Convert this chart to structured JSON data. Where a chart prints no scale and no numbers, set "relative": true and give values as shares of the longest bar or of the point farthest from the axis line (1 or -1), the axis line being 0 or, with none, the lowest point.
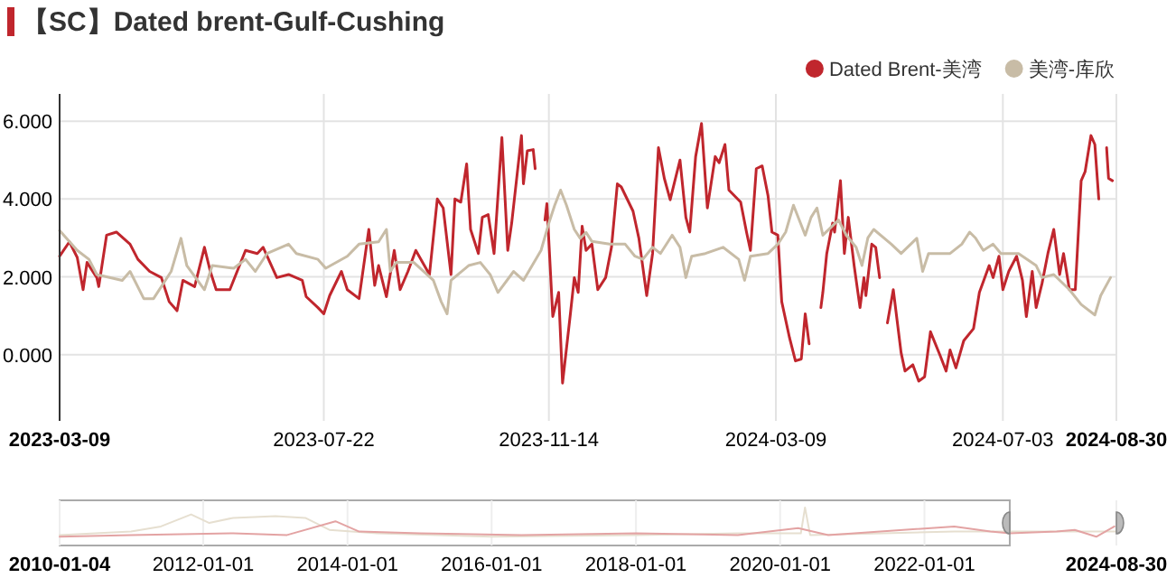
{
  "chart_data": [
    {
      "type": "line",
      "title": "【SC】Dated brent-Gulf-Cushing",
      "xlim": [
        "2023-03-09",
        "2024-08-30"
      ],
      "xticks": [
        "2023-03-09",
        "2023-07-22",
        "2023-11-14",
        "2024-03-09",
        "2024-07-03",
        "2024-08-30"
      ],
      "ylim": [
        -1.7,
        6.7
      ],
      "yticks": [
        {
          "value": 0,
          "label": "0.000"
        },
        {
          "value": 2,
          "label": "2.000"
        },
        {
          "value": 4,
          "label": "4.000"
        },
        {
          "value": 6,
          "label": "6.000"
        }
      ],
      "grid": true,
      "legend": "top right",
      "marker": "none",
      "line_style": "solid",
      "series": [
        {
          "name": "Dated Brent-美湾",
          "color": "#c0262d",
          "x": [
            "2023-03-09",
            "2023-03-14",
            "2023-03-18",
            "2023-03-21",
            "2023-03-23",
            "2023-03-28",
            "2023-03-29",
            "2023-04-02",
            "2023-04-07",
            "2023-04-14",
            "2023-04-18",
            "2023-04-24",
            "2023-04-30",
            "2023-05-04",
            "2023-05-08",
            "2023-05-11",
            "2023-05-17",
            "2023-05-22",
            "2023-05-25",
            "2023-05-28",
            "2023-06-04",
            "2023-06-12",
            "2023-06-18",
            "2023-06-21",
            "2023-06-28",
            "2023-07-04",
            "2023-07-11",
            "2023-07-13",
            "2023-07-19",
            "2023-07-22",
            "2023-07-25",
            "2023-07-31",
            "2023-08-03",
            "2023-08-09",
            "2023-08-14",
            "2023-08-17",
            "2023-08-19",
            "2023-08-23",
            "2023-08-27",
            "2023-08-30",
            "2023-09-03",
            "2023-09-07",
            "2023-09-14",
            "2023-09-18",
            "2023-09-21",
            "2023-09-25",
            "2023-09-27",
            "2023-09-30",
            "2023-10-03",
            "2023-10-05",
            "2023-10-09",
            "2023-10-11",
            "2023-10-14",
            "2023-10-17",
            "2023-10-21",
            "2023-10-24",
            "2023-10-26",
            "2023-10-31",
            "2023-11-01",
            "2023-11-03",
            "2023-11-06",
            "2023-11-07",
            "2023-11-09",
            "2023-11-12",
            "2023-11-13",
            "2023-11-16",
            "2023-11-19",
            "2023-11-21",
            "2023-11-25",
            "2023-11-27",
            "2023-11-29",
            "2023-12-01",
            "2023-12-03",
            "2023-12-06",
            "2023-12-09",
            "2023-12-13",
            "2023-12-16",
            "2023-12-19",
            "2023-12-21",
            "2023-12-27",
            "2023-12-30",
            "2024-01-03",
            "2024-01-06",
            "2024-01-09",
            "2024-01-12",
            "2024-01-15",
            "2024-01-20",
            "2024-01-23",
            "2024-01-25",
            "2024-01-28",
            "2024-01-31",
            "2024-02-03",
            "2024-02-07",
            "2024-02-09",
            "2024-02-12",
            "2024-02-14",
            "2024-02-20",
            "2024-02-23",
            "2024-02-25",
            "2024-02-28",
            "2024-03-02",
            "2024-03-05",
            "2024-03-07",
            "2024-03-10",
            "2024-03-12",
            "2024-03-16",
            "2024-03-19",
            "2024-03-22",
            "2024-03-24",
            "2024-03-26",
            "2024-03-30",
            "2024-04-01",
            "2024-04-02",
            "2024-04-04",
            "2024-04-07",
            "2024-04-08",
            "2024-04-11",
            "2024-04-13",
            "2024-04-15",
            "2024-04-18",
            "2024-04-21",
            "2024-04-23",
            "2024-04-24",
            "2024-04-27",
            "2024-04-29",
            "2024-05-01",
            "2024-05-03",
            "2024-05-05",
            "2024-05-08",
            "2024-05-12",
            "2024-05-14",
            "2024-05-18",
            "2024-05-21",
            "2024-05-24",
            "2024-05-27",
            "2024-06-01",
            "2024-06-04",
            "2024-06-06",
            "2024-06-09",
            "2024-06-13",
            "2024-06-18",
            "2024-06-21",
            "2024-06-26",
            "2024-06-28",
            "2024-07-01",
            "2024-07-03",
            "2024-07-06",
            "2024-07-10",
            "2024-07-13",
            "2024-07-15",
            "2024-07-18",
            "2024-07-20",
            "2024-07-23",
            "2024-07-26",
            "2024-07-29",
            "2024-08-01",
            "2024-08-03",
            "2024-08-06",
            "2024-08-09",
            "2024-08-12",
            "2024-08-14",
            "2024-08-17",
            "2024-08-19",
            "2024-08-21",
            "2024-08-23",
            "2024-08-25",
            "2024-08-26",
            "2024-08-28"
          ],
          "values": [
            2.53,
            2.9,
            2.5,
            1.67,
            2.37,
            1.98,
            1.75,
            3.07,
            3.15,
            2.84,
            2.45,
            2.14,
            1.98,
            1.36,
            1.13,
            1.91,
            1.75,
            2.76,
            2.14,
            1.67,
            1.67,
            2.68,
            2.6,
            2.76,
            1.98,
            2.06,
            1.91,
            1.49,
            1.21,
            1.05,
            1.52,
            2.14,
            1.67,
            1.44,
            3.22,
            1.78,
            2.29,
            1.49,
            2.68,
            1.67,
            2.14,
            2.68,
            2.06,
            4.0,
            3.77,
            2.06,
            4.0,
            3.92,
            4.9,
            3.22,
            2.6,
            3.53,
            3.6,
            2.6,
            5.58,
            2.68,
            3.38,
            5.63,
            4.39,
            5.24,
            5.27,
            4.78,
            null,
            3.46,
            3.88,
            0.98,
            1.6,
            -0.73,
            1.05,
            1.98,
            1.6,
            3.3,
            2.68,
            2.84,
            1.67,
            1.98,
            2.76,
            4.39,
            4.31,
            3.69,
            2.99,
            1.52,
            2.6,
            5.32,
            4.53,
            3.98,
            5.0,
            3.53,
            3.15,
            5.09,
            5.94,
            3.77,
            5.09,
            4.93,
            5.4,
            4.23,
            3.92,
            3.15,
            2.68,
            4.78,
            4.85,
            4.08,
            3.15,
            3.07,
            1.36,
            0.43,
            -0.16,
            -0.11,
            1.05,
            0.28,
            null,
            1.21,
            1.6,
            2.6,
            3.38,
            3.15,
            4.47,
            2.6,
            3.53,
            2.29,
            1.21,
            1.98,
            1.52,
            2.84,
            2.76,
            1.98,
            null,
            0.82,
            1.67,
            0.05,
            -0.42,
            -0.26,
            -0.68,
            -0.57,
            0.59,
            -0.03,
            -0.42,
            0.12,
            -0.34,
            0.36,
            0.67,
            1.6,
            2.29,
            1.98,
            2.53,
            1.67,
            2.14,
            2.53,
            1.91,
            0.98,
            2.14,
            1.21,
            1.83,
            2.6,
            3.22,
            2.06,
            2.6,
            1.67,
            1.67,
            4.47,
            4.7,
            5.63,
            5.4,
            4.0,
            null,
            5.32,
            4.53,
            4.47
          ]
        },
        {
          "name": "美湾-库欣",
          "color": "#c8bca6",
          "x": [
            "2023-03-09",
            "2023-03-18",
            "2023-03-24",
            "2023-03-28",
            "2023-04-10",
            "2023-04-14",
            "2023-04-21",
            "2023-04-26",
            "2023-05-05",
            "2023-05-10",
            "2023-05-13",
            "2023-05-22",
            "2023-05-26",
            "2023-06-06",
            "2023-06-12",
            "2023-06-17",
            "2023-06-23",
            "2023-07-04",
            "2023-07-08",
            "2023-07-19",
            "2023-07-23",
            "2023-08-03",
            "2023-08-09",
            "2023-08-19",
            "2023-08-23",
            "2023-08-25",
            "2023-08-28",
            "2023-09-06",
            "2023-09-16",
            "2023-09-20",
            "2023-09-23",
            "2023-09-25",
            "2023-10-04",
            "2023-10-10",
            "2023-10-15",
            "2023-10-19",
            "2023-10-27",
            "2023-11-01",
            "2023-11-10",
            "2023-11-14",
            "2023-11-17",
            "2023-11-20",
            "2023-11-23",
            "2023-11-27",
            "2023-11-30",
            "2023-12-03",
            "2023-12-06",
            "2023-12-15",
            "2023-12-23",
            "2023-12-28",
            "2024-01-01",
            "2024-01-06",
            "2024-01-10",
            "2024-01-16",
            "2024-01-20",
            "2024-01-23",
            "2024-01-26",
            "2024-02-02",
            "2024-02-11",
            "2024-02-19",
            "2024-02-22",
            "2024-02-25",
            "2024-03-05",
            "2024-03-10",
            "2024-03-14",
            "2024-03-18",
            "2024-03-24",
            "2024-03-27",
            "2024-03-30",
            "2024-04-02",
            "2024-04-10",
            "2024-04-14",
            "2024-04-19",
            "2024-04-22",
            "2024-04-25",
            "2024-04-28",
            "2024-05-07",
            "2024-05-12",
            "2024-05-20",
            "2024-05-23",
            "2024-05-26",
            "2024-06-06",
            "2024-06-12",
            "2024-06-16",
            "2024-06-19",
            "2024-06-23",
            "2024-06-28",
            "2024-07-02",
            "2024-07-11",
            "2024-07-20",
            "2024-07-23",
            "2024-07-29",
            "2024-08-06",
            "2024-08-12",
            "2024-08-19",
            "2024-08-22",
            "2024-08-27"
          ],
          "values": [
            3.19,
            2.68,
            2.45,
            2.06,
            1.91,
            2.14,
            1.44,
            1.44,
            2.14,
            2.99,
            2.29,
            1.67,
            2.29,
            2.22,
            2.45,
            2.14,
            2.6,
            2.84,
            2.6,
            2.45,
            2.22,
            2.53,
            2.84,
            2.9,
            3.22,
            2.14,
            2.37,
            2.37,
            1.91,
            1.36,
            1.05,
            1.91,
            2.29,
            2.37,
            2.06,
            1.6,
            2.14,
            1.91,
            2.68,
            3.38,
            3.84,
            4.23,
            3.84,
            3.22,
            2.99,
            3.14,
            2.91,
            2.84,
            2.84,
            2.53,
            2.45,
            2.76,
            2.6,
            3.07,
            2.76,
            1.98,
            2.53,
            2.6,
            2.76,
            2.45,
            1.91,
            2.53,
            2.6,
            2.84,
            3.15,
            3.84,
            3.07,
            3.53,
            3.77,
            3.07,
            3.46,
            3.07,
            2.76,
            2.29,
            3.0,
            3.22,
            2.84,
            2.6,
            2.99,
            2.14,
            2.6,
            2.6,
            2.84,
            3.15,
            3.0,
            2.68,
            2.84,
            2.6,
            2.6,
            2.29,
            1.98,
            2.06,
            1.67,
            1.29,
            1.02,
            1.52,
            1.98
          ]
        }
      ]
    },
    {
      "type": "line",
      "relative": true,
      "xlim": [
        "2010-01-04",
        "2024-08-30"
      ],
      "xticks": [
        "2010-01-04",
        "2012-01-01",
        "2014-01-01",
        "2016-01-01",
        "2018-01-01",
        "2020-01-01",
        "2022-01-01",
        "2024-08-30"
      ],
      "grid": "x",
      "line_style": "solid",
      "series": [
        {
          "color": "#e6dfd0",
          "x": [
            "2010-01-04",
            "2011-01-01",
            "2011-06-01",
            "2011-11-01",
            "2012-02-01",
            "2012-06-01",
            "2013-01-01",
            "2013-06-01",
            "2013-10-01",
            "2014-06-01",
            "2016-01-01",
            "2018-01-01",
            "2019-06-01",
            "2020-04-15",
            "2020-05-06",
            "2020-06-01",
            "2022-06-01",
            "2023-03-09",
            "2024-08-28"
          ],
          "values": [
            0.2,
            0.3,
            0.45,
            0.8,
            0.55,
            0.7,
            0.75,
            0.7,
            0.35,
            0.25,
            0.15,
            0.2,
            0.25,
            0.25,
            1,
            0.2,
            0.3,
            0.3,
            0.3
          ]
        },
        {
          "color": "#e3a3a3",
          "x": [
            "2010-01-04",
            "2011-01-01",
            "2012-06-01",
            "2013-03-01",
            "2013-11-01",
            "2014-03-01",
            "2015-01-01",
            "2016-06-01",
            "2018-01-01",
            "2019-06-01",
            "2020-04-01",
            "2020-09-01",
            "2022-06-01",
            "2022-12-01",
            "2023-03-09",
            "2023-11-01",
            "2024-02-01",
            "2024-05-20",
            "2024-08-20"
          ],
          "values": [
            0.15,
            0.2,
            0.25,
            0.2,
            0.6,
            0.3,
            0.25,
            0.2,
            0.25,
            0.2,
            0.4,
            0.2,
            0.45,
            0.3,
            0.25,
            0.3,
            0.35,
            0.15,
            0.45
          ]
        }
      ]
    }
  ]
}
